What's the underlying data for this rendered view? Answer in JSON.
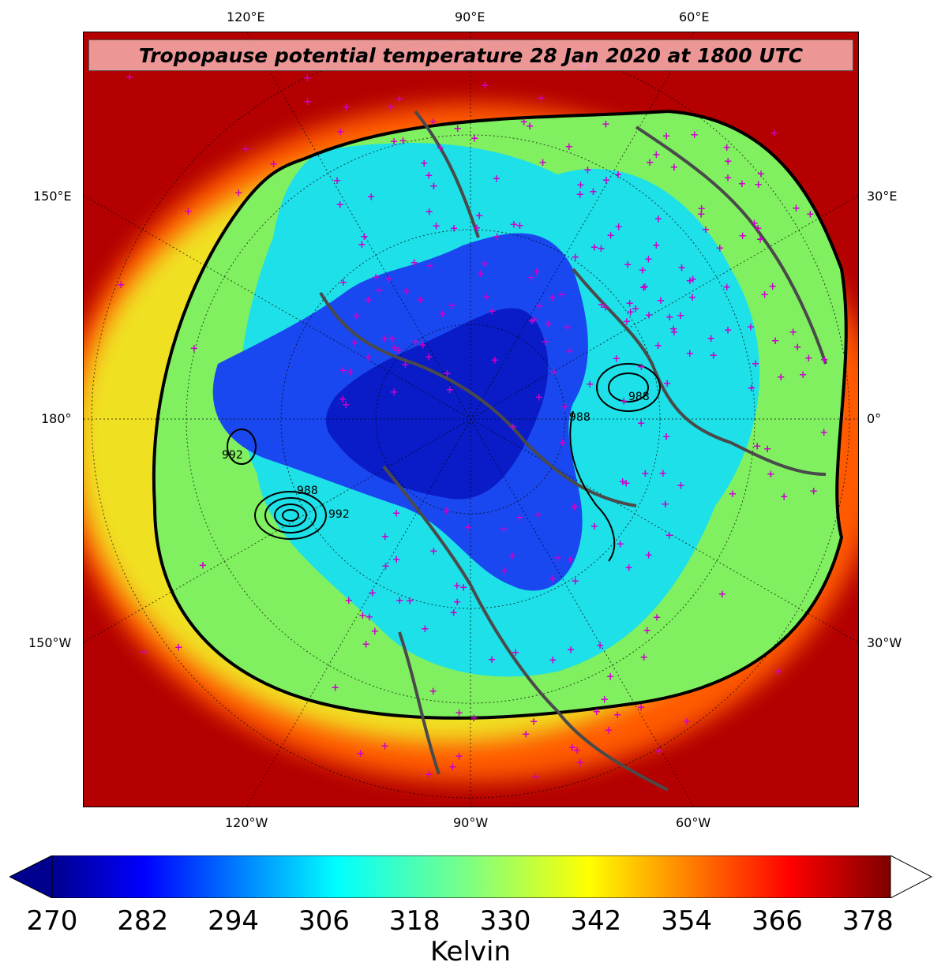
{
  "title": "Tropopause potential temperature 28 Jan 2020 at 1800 UTC",
  "map_labels": {
    "top": [
      "120°E",
      "90°E",
      "60°E"
    ],
    "bottom": [
      "120°W",
      "90°W",
      "60°W"
    ],
    "left": [
      "150°E",
      "180°",
      "150°W"
    ],
    "right": [
      "30°E",
      "0°",
      "30°W"
    ]
  },
  "colorbar": {
    "ticks": [
      "270",
      "282",
      "294",
      "306",
      "318",
      "330",
      "342",
      "354",
      "366",
      "378"
    ],
    "label": "Kelvin",
    "range": [
      270,
      381
    ],
    "extend": "both",
    "colormap": "jet"
  },
  "contour_labels": [
    "988",
    "992",
    "988",
    "988",
    "992"
  ],
  "colors": {
    "station_marker": "#cc00cc",
    "coastline": "#4a4a4a",
    "outer_red": "#c80000",
    "deep_blue": "#0018d8"
  }
}
